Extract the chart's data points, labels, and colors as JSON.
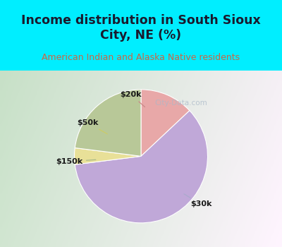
{
  "title": "Income distribution in South Sioux\nCity, NE (%)",
  "subtitle": "American Indian and Alaska Native residents",
  "slices": [
    {
      "label": "$20k",
      "value": 13,
      "color": "#e8a8a8"
    },
    {
      "label": "$30k",
      "value": 60,
      "color": "#c0a8d8"
    },
    {
      "label": "$50k",
      "value": 4,
      "color": "#e8e098"
    },
    {
      "label": "$150k",
      "value": 23,
      "color": "#b8c898"
    }
  ],
  "background_top": "#00eeff",
  "background_chart_left": "#c8e8c8",
  "background_chart_right": "#e8f0f8",
  "title_color": "#1a1a2e",
  "subtitle_color": "#cc6644",
  "watermark": "City-Data.com",
  "label_color": "#1a1a1a",
  "label_fontsize": 8,
  "title_fontsize": 12.5,
  "subtitle_fontsize": 9,
  "line_colors": [
    "#cc8888",
    "#aaaacc",
    "#cccc66",
    "#aabb88"
  ],
  "annotation_data": [
    {
      "label": "$20k",
      "point": [
        0.08,
        0.72
      ],
      "text": [
        -0.15,
        0.92
      ]
    },
    {
      "label": "$30k",
      "point": [
        0.62,
        -0.55
      ],
      "text": [
        0.9,
        -0.72
      ]
    },
    {
      "label": "$50k",
      "point": [
        -0.48,
        0.32
      ],
      "text": [
        -0.8,
        0.5
      ]
    },
    {
      "label": "$150k",
      "point": [
        -0.65,
        -0.05
      ],
      "text": [
        -1.08,
        -0.08
      ]
    }
  ],
  "startangle": 90,
  "pie_order": [
    0,
    1,
    2,
    3
  ]
}
